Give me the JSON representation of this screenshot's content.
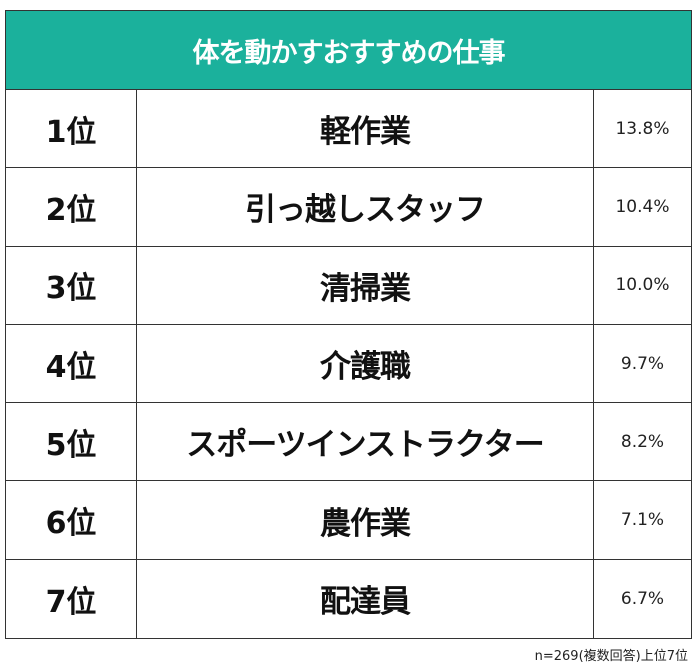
{
  "title": "体を動かすおすすめの仕事",
  "rows": [
    {
      "rank": "1位",
      "job": "軽作業",
      "pct": "13.8%"
    },
    {
      "rank": "2位",
      "job": "引っ越しスタッフ",
      "pct": "10.4%"
    },
    {
      "rank": "3位",
      "job": "清掃業",
      "pct": "10.0%"
    },
    {
      "rank": "4位",
      "job": "介護職",
      "pct": "9.7%"
    },
    {
      "rank": "5位",
      "job": "スポーツインストラクター",
      "pct": "8.2%"
    },
    {
      "rank": "6位",
      "job": "農作業",
      "pct": "7.1%"
    },
    {
      "rank": "7位",
      "job": "配達員",
      "pct": "6.7%"
    }
  ],
  "footnote": "n=269(複数回答)上位7位",
  "colors": {
    "header_bg": "#1BB19C",
    "header_text": "#FFFFFF",
    "border": "#333333"
  },
  "chart_data": {
    "type": "table",
    "title": "体を動かすおすすめの仕事",
    "categories": [
      "軽作業",
      "引っ越しスタッフ",
      "清掃業",
      "介護職",
      "スポーツインストラクター",
      "農作業",
      "配達員"
    ],
    "values": [
      13.8,
      10.4,
      10.0,
      9.7,
      8.2,
      7.1,
      6.7
    ],
    "ranks": [
      "1位",
      "2位",
      "3位",
      "4位",
      "5位",
      "6位",
      "7位"
    ],
    "unit": "%",
    "note": "n=269(複数回答)上位7位"
  }
}
